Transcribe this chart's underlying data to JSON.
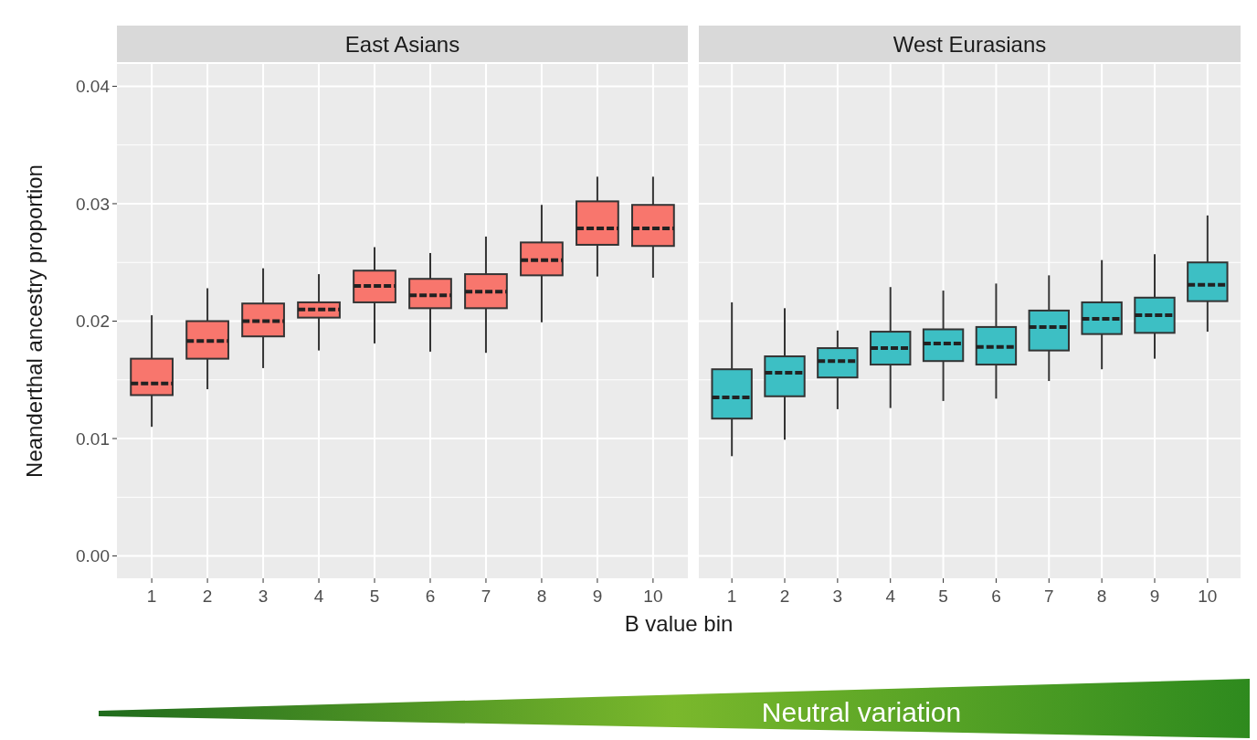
{
  "chart_data": [
    {
      "type": "box",
      "title": "East Asians",
      "xlabel": "B value bin",
      "ylabel": "Neanderthal ancestry proportion",
      "categories": [
        "1",
        "2",
        "3",
        "4",
        "5",
        "6",
        "7",
        "8",
        "9",
        "10"
      ],
      "color": "#f8766d",
      "ylim": [
        -0.0019,
        0.0419
      ],
      "yticks": [
        {
          "value": 0,
          "label": "0.00"
        },
        {
          "value": 0.01,
          "label": "0.01"
        },
        {
          "value": 0.02,
          "label": "0.02"
        },
        {
          "value": 0.03,
          "label": "0.03"
        },
        {
          "value": 0.04,
          "label": "0.04"
        }
      ],
      "grid": true,
      "boxes": [
        {
          "low": 0.011,
          "q1": 0.0137,
          "median": 0.0147,
          "q3": 0.0168,
          "high": 0.0205
        },
        {
          "low": 0.0142,
          "q1": 0.0168,
          "median": 0.0183,
          "q3": 0.02,
          "high": 0.0228
        },
        {
          "low": 0.016,
          "q1": 0.0187,
          "median": 0.02,
          "q3": 0.0215,
          "high": 0.0245
        },
        {
          "low": 0.0175,
          "q1": 0.0203,
          "median": 0.021,
          "q3": 0.0216,
          "high": 0.024
        },
        {
          "low": 0.0181,
          "q1": 0.0216,
          "median": 0.023,
          "q3": 0.0243,
          "high": 0.0263
        },
        {
          "low": 0.0174,
          "q1": 0.0211,
          "median": 0.0222,
          "q3": 0.0236,
          "high": 0.0258
        },
        {
          "low": 0.0173,
          "q1": 0.0211,
          "median": 0.0225,
          "q3": 0.024,
          "high": 0.0272
        },
        {
          "low": 0.0199,
          "q1": 0.0239,
          "median": 0.0252,
          "q3": 0.0267,
          "high": 0.0299
        },
        {
          "low": 0.0238,
          "q1": 0.0265,
          "median": 0.0279,
          "q3": 0.0302,
          "high": 0.0323
        },
        {
          "low": 0.0237,
          "q1": 0.0264,
          "median": 0.0279,
          "q3": 0.0299,
          "high": 0.0323
        }
      ]
    },
    {
      "type": "box",
      "title": "West Eurasians",
      "categories": [
        "1",
        "2",
        "3",
        "4",
        "5",
        "6",
        "7",
        "8",
        "9",
        "10"
      ],
      "color": "#3dbfc4",
      "ylim": [
        -0.0019,
        0.0419
      ],
      "yticks": [
        {
          "value": 0,
          "label": null
        },
        {
          "value": 0.01,
          "label": null
        },
        {
          "value": 0.02,
          "label": null
        },
        {
          "value": 0.03,
          "label": null
        },
        {
          "value": 0.04,
          "label": null
        }
      ],
      "grid": true,
      "tick_labels": "x",
      "annotations": [
        "Neutral variation"
      ],
      "boxes": [
        {
          "low": 0.0085,
          "q1": 0.0117,
          "median": 0.0135,
          "q3": 0.0159,
          "high": 0.0216
        },
        {
          "low": 0.0099,
          "q1": 0.0136,
          "median": 0.0156,
          "q3": 0.017,
          "high": 0.0211
        },
        {
          "low": 0.0125,
          "q1": 0.0152,
          "median": 0.0166,
          "q3": 0.0177,
          "high": 0.0192
        },
        {
          "low": 0.0126,
          "q1": 0.0163,
          "median": 0.0177,
          "q3": 0.0191,
          "high": 0.0229
        },
        {
          "low": 0.0132,
          "q1": 0.0166,
          "median": 0.0181,
          "q3": 0.0193,
          "high": 0.0226
        },
        {
          "low": 0.0134,
          "q1": 0.0163,
          "median": 0.0178,
          "q3": 0.0195,
          "high": 0.0232
        },
        {
          "low": 0.0149,
          "q1": 0.0175,
          "median": 0.0195,
          "q3": 0.0209,
          "high": 0.0239
        },
        {
          "low": 0.0159,
          "q1": 0.0189,
          "median": 0.0202,
          "q3": 0.0216,
          "high": 0.0252
        },
        {
          "low": 0.0168,
          "q1": 0.019,
          "median": 0.0205,
          "q3": 0.022,
          "high": 0.0257
        },
        {
          "low": 0.0191,
          "q1": 0.0217,
          "median": 0.0231,
          "q3": 0.025,
          "high": 0.029
        }
      ]
    }
  ]
}
